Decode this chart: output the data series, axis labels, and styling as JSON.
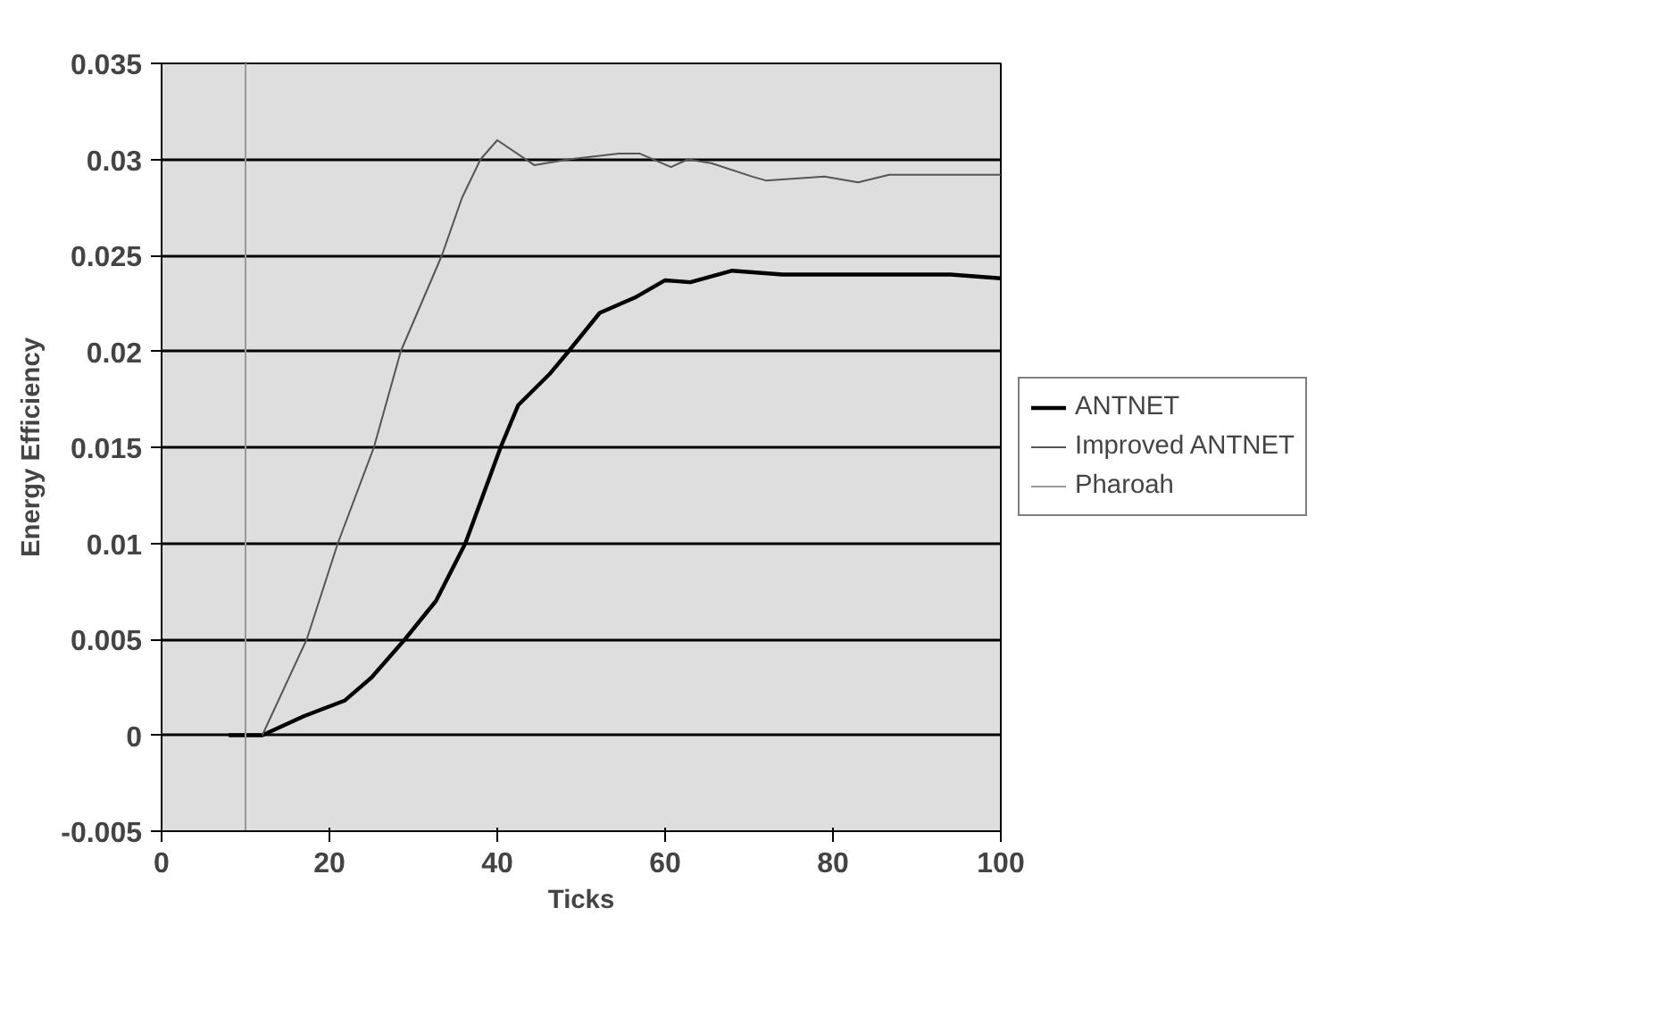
{
  "chart_data": {
    "type": "line",
    "xlabel": "Ticks",
    "ylabel": "Energy Efficiency",
    "xlim": [
      0,
      100
    ],
    "xticks": [
      0,
      20,
      40,
      60,
      80,
      100
    ],
    "ylim": [
      -0.005,
      0.035
    ],
    "yticks": [
      -0.005,
      0,
      0.005,
      0.01,
      0.015,
      0.02,
      0.025,
      0.03,
      0.035
    ],
    "grid": "y",
    "legend": "right",
    "series": [
      {
        "name": "ANTNET",
        "color": "#000000",
        "x": [
          8,
          12,
          17,
          21.8,
          25,
          29,
          32.7,
          36.2,
          40.4,
          42.5,
          46.2,
          48.5,
          52.2,
          56.4,
          60,
          63,
          68,
          74,
          84,
          94,
          100
        ],
        "values": [
          0,
          0,
          0.001,
          0.0018,
          0.003,
          0.005,
          0.007,
          0.01,
          0.015,
          0.0172,
          0.0188,
          0.02,
          0.022,
          0.0228,
          0.0237,
          0.0236,
          0.0242,
          0.024,
          0.024,
          0.024,
          0.0238
        ]
      },
      {
        "name": "Improved ANTNET",
        "color": "#555555",
        "x": [
          12,
          17.3,
          21,
          25.3,
          28.5,
          33.4,
          35.8,
          38,
          40,
          44.4,
          48.5,
          54.5,
          57,
          60.7,
          62.7,
          65.5,
          70.4,
          72,
          79,
          83,
          86.7,
          100
        ],
        "values": [
          0,
          0.005,
          0.01,
          0.015,
          0.02,
          0.025,
          0.028,
          0.03,
          0.031,
          0.0297,
          0.03,
          0.0303,
          0.0303,
          0.0296,
          0.03,
          0.0298,
          0.0291,
          0.0289,
          0.0291,
          0.0288,
          0.0292,
          0.0292
        ]
      },
      {
        "name": "Pharoah",
        "color": "#999999",
        "x": [
          10,
          10
        ],
        "values": [
          -0.005,
          0.035
        ]
      }
    ]
  }
}
